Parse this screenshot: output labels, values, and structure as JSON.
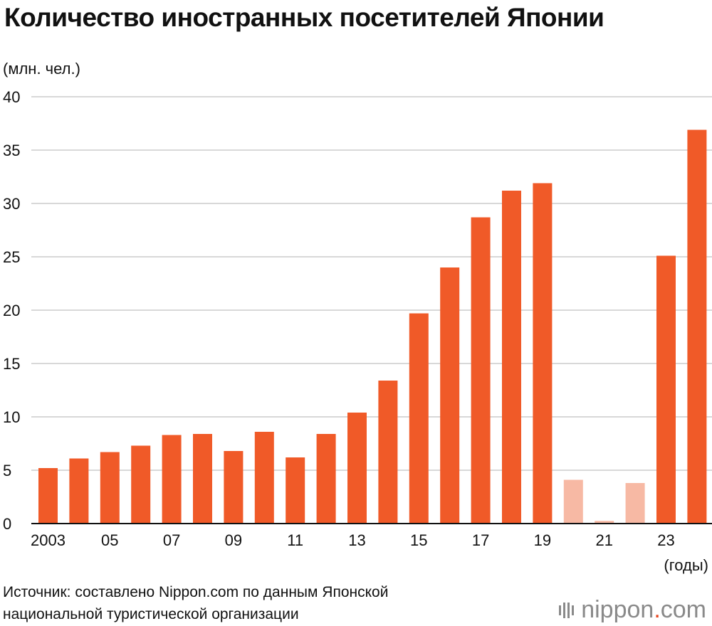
{
  "title": "Количество иностранных посетителей Японии",
  "unit_label": "(млн. чел.)",
  "source_line1": "Источник: составлено Nippon.com по данным Японской",
  "source_line2": "национальной туристической организации",
  "logo": {
    "name": "nippon",
    "dot": ".",
    "suffix": "com",
    "icon": "nippon-logo-icon"
  },
  "colors": {
    "bar": "#f05a28",
    "bar_light": "#f7b9a4",
    "grid": "#cccccc",
    "axis": "#111111"
  },
  "chart_data": {
    "type": "bar",
    "categories": [
      "2003",
      "2004",
      "2005",
      "2006",
      "2007",
      "2008",
      "2009",
      "2010",
      "2011",
      "2012",
      "2013",
      "2014",
      "2015",
      "2016",
      "2017",
      "2018",
      "2019",
      "2020",
      "2021",
      "2022",
      "2023",
      "2024"
    ],
    "values": [
      5.2,
      6.1,
      6.7,
      7.3,
      8.3,
      8.4,
      6.8,
      8.6,
      6.2,
      8.4,
      10.4,
      13.4,
      19.7,
      24.0,
      28.7,
      31.2,
      31.9,
      4.1,
      0.25,
      3.8,
      25.1,
      36.9
    ],
    "highlight_light": [
      "2020",
      "2021",
      "2022"
    ],
    "x_tick_labels": [
      "2003",
      "",
      "05",
      "",
      "07",
      "",
      "09",
      "",
      "11",
      "",
      "13",
      "",
      "15",
      "",
      "17",
      "",
      "19",
      "",
      "21",
      "",
      "23",
      ""
    ],
    "y_ticks": [
      0,
      5,
      10,
      15,
      20,
      25,
      30,
      35,
      40
    ],
    "ylim": [
      0,
      40
    ],
    "xlabel": "(годы)",
    "ylabel": "(млн. чел.)",
    "grid": true
  }
}
